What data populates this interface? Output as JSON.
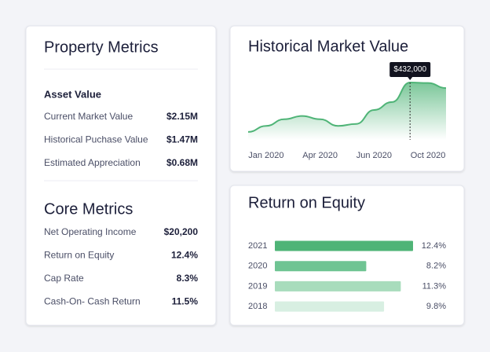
{
  "property_metrics": {
    "title": "Property Metrics",
    "sections": [
      {
        "title": "Asset Value",
        "rows": [
          [
            "Current Market Value",
            "$2.15M"
          ],
          [
            "Historical Puchase Value",
            "$1.47M"
          ],
          [
            "Estimated Appreciation",
            "$0.68M"
          ]
        ]
      },
      {
        "title": "Core Metrics",
        "rows": [
          [
            "Net Operating Income",
            "$20,200"
          ],
          [
            "Return on Equity",
            "12.4%"
          ],
          [
            "Cap Rate",
            "8.3%"
          ],
          [
            "Cash-On- Cash Return",
            "11.5%"
          ]
        ]
      }
    ]
  },
  "chart_data": [
    {
      "type": "line",
      "title": "Historical Market Value",
      "categories": [
        null,
        "Jan 2020",
        null,
        null,
        "Apr 2020",
        null,
        null,
        "Jun 2020",
        null,
        null,
        "Oct 2020",
        null
      ],
      "values": [
        60000,
        105000,
        155000,
        180000,
        155000,
        105000,
        120000,
        225000,
        285000,
        432000,
        428000,
        390000
      ],
      "value_labels": [
        null,
        null,
        null,
        null,
        null,
        null,
        null,
        null,
        null,
        "$432,000",
        null,
        null
      ],
      "ylim": [
        0,
        500000
      ],
      "color": "#4fb477"
    },
    {
      "type": "bar",
      "title": "Return on Equity",
      "categories": [
        "2021",
        "2020",
        "2019",
        "2018"
      ],
      "values": [
        12.4,
        8.2,
        11.3,
        9.8
      ],
      "value_labels": [
        "12.4%",
        "8.2%",
        "11.3%",
        "9.8%"
      ],
      "xlim": [
        0,
        12.4
      ],
      "colors": [
        "#4fb477",
        "#6fc493",
        "#a8dcbc",
        "#d8efe2"
      ]
    }
  ]
}
